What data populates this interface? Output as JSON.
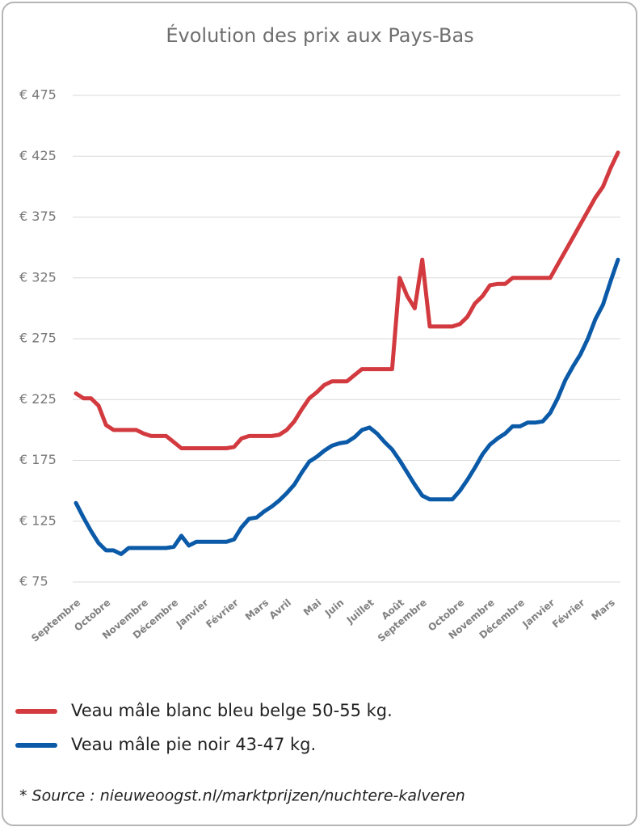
{
  "chart_data": {
    "type": "line",
    "title": "Évolution des prix aux Pays-Bas",
    "categories": [
      "Septembre",
      null,
      null,
      null,
      "Octobre",
      null,
      null,
      null,
      null,
      "Novembre",
      null,
      null,
      null,
      "Décembre",
      null,
      null,
      null,
      "Janvier",
      null,
      null,
      null,
      "Février",
      null,
      null,
      null,
      "Mars",
      null,
      null,
      "Avril",
      null,
      null,
      null,
      "Mai",
      null,
      null,
      "Juin",
      null,
      null,
      null,
      "Juillet",
      null,
      null,
      null,
      "Août",
      null,
      null,
      "Septembre",
      null,
      null,
      null,
      null,
      "Octobre",
      null,
      null,
      null,
      "Novembre",
      null,
      null,
      null,
      "Décembre",
      null,
      null,
      null,
      "Janvier",
      null,
      null,
      null,
      "Février",
      null,
      null,
      null,
      "Mars",
      null
    ],
    "series": [
      {
        "name": "Veau mâle blanc bleu belge 50-55 kg.",
        "color": "#d23a3f",
        "values": [
          230,
          226,
          226,
          220,
          204,
          200,
          200,
          200,
          200,
          197,
          195,
          195,
          195,
          190,
          185,
          185,
          185,
          185,
          185,
          185,
          185,
          186,
          193,
          195,
          195,
          195,
          195,
          196,
          200,
          207,
          217,
          226,
          231,
          237,
          240,
          240,
          240,
          245,
          250,
          250,
          250,
          250,
          250,
          325,
          310,
          300,
          340,
          285,
          285,
          285,
          285,
          287,
          293,
          304,
          310,
          319,
          320,
          320,
          325,
          325,
          325,
          325,
          325,
          325,
          336,
          347,
          358,
          369,
          380,
          391,
          400,
          415,
          428
        ]
      },
      {
        "name": "Veau mâle pie noir 43-47 kg.",
        "color": "#0b5aa8",
        "values": [
          140,
          128,
          117,
          107,
          101,
          101,
          98,
          103,
          103,
          103,
          103,
          103,
          103,
          104,
          113,
          105,
          108,
          108,
          108,
          108,
          108,
          110,
          120,
          127,
          128,
          133,
          137,
          142,
          148,
          155,
          165,
          174,
          178,
          183,
          187,
          189,
          190,
          194,
          200,
          202,
          197,
          190,
          184,
          175,
          165,
          155,
          146,
          143,
          143,
          143,
          143,
          150,
          159,
          169,
          180,
          188,
          193,
          197,
          203,
          203,
          206,
          206,
          207,
          214,
          226,
          241,
          252,
          262,
          275,
          291,
          303,
          322,
          340
        ]
      }
    ],
    "ylim": [
      75,
      475
    ],
    "yticks": [
      {
        "value": 75,
        "label": "€ 75"
      },
      {
        "value": 125,
        "label": "€ 125"
      },
      {
        "value": 175,
        "label": "€ 175"
      },
      {
        "value": 225,
        "label": "€ 225"
      },
      {
        "value": 275,
        "label": "€ 275"
      },
      {
        "value": 325,
        "label": "€ 325"
      },
      {
        "value": 375,
        "label": "€ 375"
      },
      {
        "value": 425,
        "label": "€ 425"
      },
      {
        "value": 475,
        "label": "€ 475"
      }
    ],
    "grid": true,
    "source": "* Source : nieuweoogst.nl/marktprijzen/nuchtere-kalveren"
  }
}
